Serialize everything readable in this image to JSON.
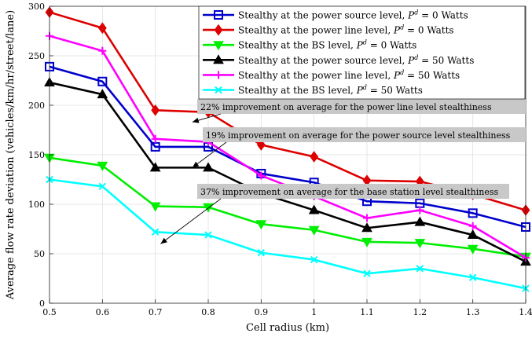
{
  "chart_data": {
    "type": "line",
    "xlabel": "Cell radius (km)",
    "ylabel": "Average flow rate deviation (vehicles/km/hr/street/lane)",
    "xlim": [
      0.5,
      1.4
    ],
    "ylim": [
      0,
      300
    ],
    "xticks": [
      "0.5",
      "0.6",
      "0.7",
      "0.8",
      "0.9",
      "1",
      "1.1",
      "1.2",
      "1.3",
      "1.4"
    ],
    "yticks": [
      "0",
      "50",
      "100",
      "150",
      "200",
      "250",
      "300"
    ],
    "grid": true,
    "legend_position": "top-right",
    "x": [
      0.5,
      0.6,
      0.7,
      0.8,
      0.9,
      1.0,
      1.1,
      1.2,
      1.3,
      1.4
    ],
    "series": [
      {
        "name": "Stealthy at the power source level, ",
        "name_tail": " = 0 Watts",
        "color": "#0000cc",
        "marker": "square",
        "values": [
          239,
          224,
          158,
          158,
          131,
          122,
          103,
          101,
          91,
          77
        ]
      },
      {
        "name": "Stealthy at the power line level, ",
        "name_tail": " = 0 Watts",
        "color": "#dd0000",
        "marker": "diamond",
        "values": [
          294,
          278,
          195,
          193,
          160,
          148,
          124,
          123,
          110,
          94
        ]
      },
      {
        "name": "Stealthy at the BS level, ",
        "name_tail": " = 0 Watts",
        "color": "#00ee00",
        "marker": "triangle-down",
        "values": [
          147,
          139,
          98,
          97,
          80,
          74,
          62,
          61,
          55,
          47
        ]
      },
      {
        "name": "Stealthy at the power source level, ",
        "name_tail": " = 50 Watts",
        "color": "#000000",
        "marker": "triangle-up",
        "values": [
          223,
          211,
          137,
          137,
          111,
          94,
          76,
          82,
          69,
          42
        ]
      },
      {
        "name": "Stealthy at the power line level, ",
        "name_tail": " = 50 Watts",
        "color": "#ff00ff",
        "marker": "plus",
        "values": [
          270,
          255,
          166,
          163,
          129,
          108,
          86,
          94,
          78,
          46
        ]
      },
      {
        "name": "Stealthy at the BS level, ",
        "name_tail": " = 50 Watts",
        "color": "#00ffff",
        "marker": "x",
        "values": [
          125,
          118,
          72,
          69,
          51,
          44,
          30,
          35,
          26,
          15
        ]
      }
    ],
    "legend_symbol": "P",
    "legend_symbol_sup": "d",
    "annotations": [
      {
        "text": "22% improvement on average for the power line level stealthiness",
        "target": [
          0.77,
          183
        ]
      },
      {
        "text": "19% improvement on average for the power source level stealthiness",
        "target": [
          0.77,
          137
        ]
      },
      {
        "text": "37% improvement on average for the base station level stealthiness",
        "target": [
          0.71,
          60
        ]
      }
    ]
  }
}
